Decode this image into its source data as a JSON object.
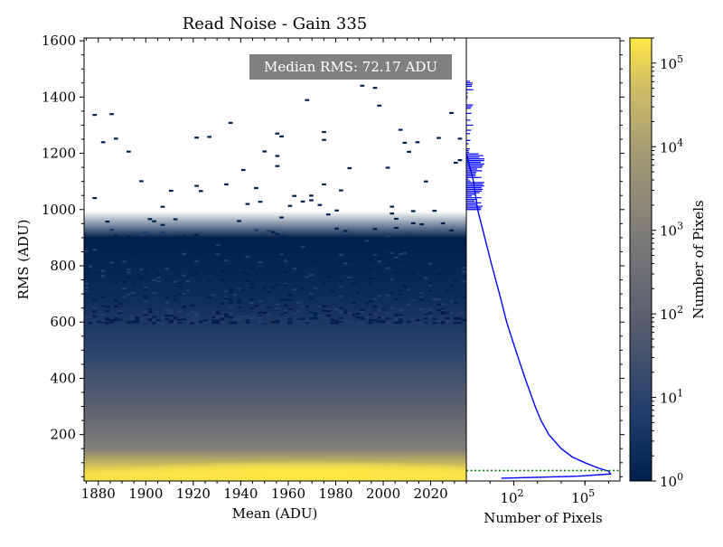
{
  "chart_data": [
    {
      "type": "heatmap",
      "title": "Read Noise - Gain 335",
      "xlabel": "Mean (ADU)",
      "ylabel": "RMS (ADU)",
      "xlim": [
        1874,
        2035
      ],
      "ylim": [
        35,
        1610
      ],
      "xticks": [
        1880,
        1900,
        1920,
        1940,
        1960,
        1980,
        2000,
        2020
      ],
      "yticks": [
        200,
        400,
        600,
        800,
        1000,
        1200,
        1400,
        1600
      ],
      "color_scale": "log",
      "colormap": [
        "#00204c",
        "#7c7b78",
        "#ffe945"
      ],
      "annotation": "Median RMS: 72.17 ADU",
      "median_rms": 72.17,
      "core_peak_rms": 62,
      "density_falloff_rms": [
        {
          "rms": 62,
          "pixels": 150000
        },
        {
          "rms": 150,
          "pixels": 1000
        },
        {
          "rms": 300,
          "pixels": 100
        },
        {
          "rms": 500,
          "pixels": 10
        },
        {
          "rms": 700,
          "pixels": 2
        },
        {
          "rms": 900,
          "pixels": 1
        }
      ]
    },
    {
      "type": "line",
      "xlabel": "Number of Pixels",
      "xscale": "log",
      "xlim": [
        1,
        3000000
      ],
      "ylim": [
        35,
        1610
      ],
      "xticks": [
        {
          "value": 100,
          "base": "10",
          "exp": "2"
        },
        {
          "value": 100000,
          "base": "10",
          "exp": "5"
        }
      ],
      "series": [
        {
          "color": "#0000ff",
          "points": [
            {
              "rms": 45,
              "pixels": 30
            },
            {
              "rms": 52,
              "pixels": 50000
            },
            {
              "rms": 60,
              "pixels": 1200000
            },
            {
              "rms": 70,
              "pixels": 1000000
            },
            {
              "rms": 80,
              "pixels": 400000
            },
            {
              "rms": 100,
              "pixels": 100000
            },
            {
              "rms": 120,
              "pixels": 30000
            },
            {
              "rms": 150,
              "pixels": 10000
            },
            {
              "rms": 200,
              "pixels": 3000
            },
            {
              "rms": 250,
              "pixels": 1400
            },
            {
              "rms": 300,
              "pixels": 800
            },
            {
              "rms": 400,
              "pixels": 300
            },
            {
              "rms": 500,
              "pixels": 120
            },
            {
              "rms": 600,
              "pixels": 50
            },
            {
              "rms": 700,
              "pixels": 25
            },
            {
              "rms": 800,
              "pixels": 12
            },
            {
              "rms": 900,
              "pixels": 6
            },
            {
              "rms": 1000,
              "pixels": 3
            },
            {
              "rms": 1100,
              "pixels": 2
            },
            {
              "rms": 1200,
              "pixels": 1
            },
            {
              "rms": 1300,
              "pixels": 0.5
            },
            {
              "rms": 1450,
              "pixels": 0.3
            }
          ]
        }
      ],
      "median_line": {
        "rms": 72.17,
        "color": "#008000",
        "style": "dotted"
      }
    },
    {
      "type": "colorbar",
      "label": "Number of Pixels",
      "scale": "log",
      "range": [
        1,
        200000
      ],
      "ticks": [
        {
          "value": 1,
          "base": "10",
          "exp": "0"
        },
        {
          "value": 10,
          "base": "10",
          "exp": "1"
        },
        {
          "value": 100,
          "base": "10",
          "exp": "2"
        },
        {
          "value": 1000,
          "base": "10",
          "exp": "3"
        },
        {
          "value": 10000,
          "base": "10",
          "exp": "4"
        },
        {
          "value": 100000,
          "base": "10",
          "exp": "5"
        }
      ]
    }
  ]
}
